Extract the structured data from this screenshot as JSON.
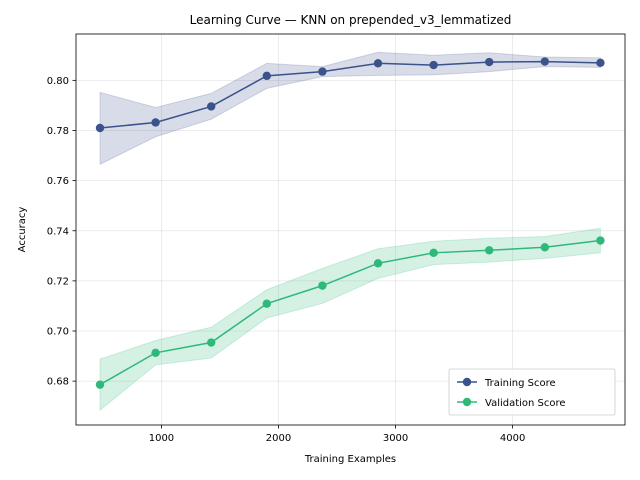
{
  "chart_data": {
    "type": "line",
    "title": "Learning Curve — KNN on prepended_v3_lemmatized",
    "xlabel": "Training Examples",
    "ylabel": "Accuracy",
    "xlim": [
      270,
      4960
    ],
    "ylim": [
      0.6625,
      0.8185
    ],
    "xticks": [
      1000,
      2000,
      3000,
      4000
    ],
    "yticks": [
      0.68,
      0.7,
      0.72,
      0.74,
      0.76,
      0.78,
      0.8
    ],
    "grid": true,
    "legend_position": "lower-right",
    "x": [
      475,
      950,
      1425,
      1900,
      2375,
      2850,
      3325,
      3800,
      4275,
      4750
    ],
    "series": [
      {
        "name": "Training Score",
        "color": "#3b528b",
        "values": [
          0.781,
          0.7832,
          0.7896,
          0.8018,
          0.8035,
          0.8068,
          0.8061,
          0.8073,
          0.8075,
          0.807
        ],
        "lower": [
          0.7665,
          0.7775,
          0.7845,
          0.7968,
          0.8015,
          0.802,
          0.8022,
          0.8035,
          0.8055,
          0.8052
        ],
        "upper": [
          0.7952,
          0.7892,
          0.7948,
          0.8068,
          0.8055,
          0.8112,
          0.81,
          0.811,
          0.8093,
          0.809
        ]
      },
      {
        "name": "Validation Score",
        "color": "#2eb87a",
        "values": [
          0.6786,
          0.6913,
          0.6954,
          0.7109,
          0.7181,
          0.727,
          0.7312,
          0.7322,
          0.7334,
          0.7361
        ],
        "lower": [
          0.6684,
          0.6865,
          0.6892,
          0.7052,
          0.711,
          0.721,
          0.7265,
          0.7275,
          0.729,
          0.7312
        ],
        "upper": [
          0.6888,
          0.6962,
          0.7015,
          0.7165,
          0.725,
          0.7328,
          0.7358,
          0.737,
          0.7377,
          0.741
        ]
      }
    ]
  }
}
